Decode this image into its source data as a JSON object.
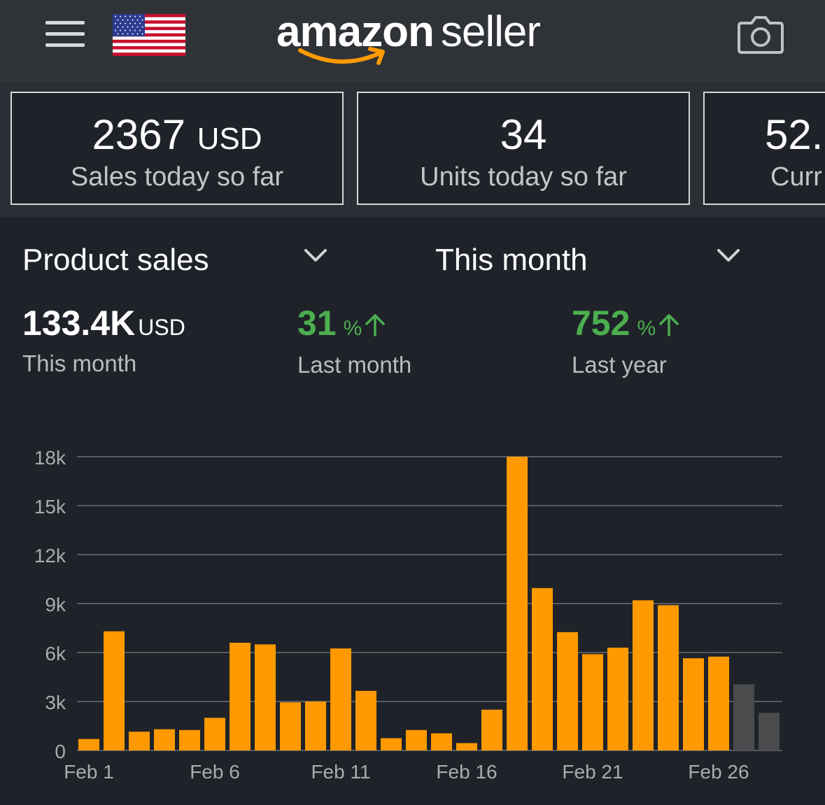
{
  "header": {
    "logo_bold": "amazon",
    "logo_light": "seller",
    "menu_icon": "hamburger-menu-icon",
    "flag_icon": "us-flag-icon",
    "camera_icon": "camera-icon"
  },
  "cards": [
    {
      "value": "2367",
      "unit": "USD",
      "label": "Sales today so far"
    },
    {
      "value": "34",
      "unit": "",
      "label": "Units today so far"
    },
    {
      "value": "52.",
      "unit": "",
      "label": "Curr"
    }
  ],
  "selectors": {
    "metric": "Product sales",
    "period": "This month"
  },
  "stats": {
    "total": {
      "value": "133.4K",
      "unit": "USD",
      "label": "This month"
    },
    "vs_last_month": {
      "value": "31",
      "unit": "%",
      "label": "Last month"
    },
    "vs_last_year": {
      "value": "752",
      "unit": "%",
      "label": "Last year"
    }
  },
  "colors": {
    "accent_bar": "#ff9900",
    "muted_bar": "#4a4b4d",
    "positive": "#4cae4f",
    "background": "#1f2329"
  },
  "chart_data": {
    "type": "bar",
    "categories": [
      "Feb 1",
      "Feb 2",
      "Feb 3",
      "Feb 4",
      "Feb 5",
      "Feb 6",
      "Feb 7",
      "Feb 8",
      "Feb 9",
      "Feb 10",
      "Feb 11",
      "Feb 12",
      "Feb 13",
      "Feb 14",
      "Feb 15",
      "Feb 16",
      "Feb 17",
      "Feb 18",
      "Feb 19",
      "Feb 20",
      "Feb 21",
      "Feb 22",
      "Feb 23",
      "Feb 24",
      "Feb 25",
      "Feb 26",
      "Feb 27",
      "Feb 28"
    ],
    "values": [
      700,
      7300,
      1150,
      1300,
      1250,
      2000,
      6600,
      6500,
      2950,
      3000,
      6250,
      3650,
      750,
      1250,
      1050,
      450,
      2500,
      18000,
      9950,
      7250,
      5900,
      6300,
      9200,
      8900,
      5650,
      5750,
      4050,
      2300
    ],
    "highlighted": [
      true,
      true,
      true,
      true,
      true,
      true,
      true,
      true,
      true,
      true,
      true,
      true,
      true,
      true,
      true,
      true,
      true,
      true,
      true,
      true,
      true,
      true,
      true,
      true,
      true,
      true,
      false,
      false
    ],
    "x_tick_labels": [
      "Feb 1",
      "Feb 6",
      "Feb 11",
      "Feb 16",
      "Feb 21",
      "Feb 26"
    ],
    "y_tick_values": [
      0,
      3000,
      6000,
      9000,
      12000,
      15000,
      18000
    ],
    "y_tick_labels": [
      "0",
      "3k",
      "6k",
      "9k",
      "12k",
      "15k",
      "18k"
    ],
    "ylim": [
      0,
      18000
    ],
    "grid": true,
    "xlabel": "",
    "ylabel": "",
    "title": ""
  }
}
